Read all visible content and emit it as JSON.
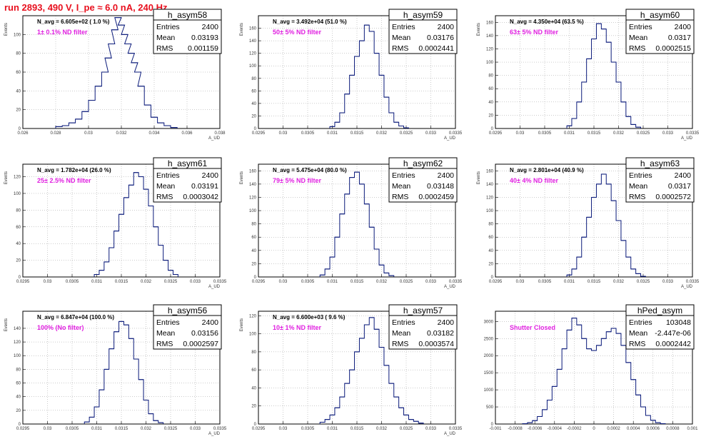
{
  "title": "run 2893,   490 V, I_pe ≈ 6.0 nA, 240 Hz",
  "stats_labels": {
    "entries": "Entries",
    "mean": "Mean",
    "rms": "RMS"
  },
  "colors": {
    "hist": "#0a1a7a",
    "title": "#e8101e",
    "filter": "#e020e0",
    "grid": "#9a9a9a"
  },
  "chart_data": [
    {
      "type": "bar",
      "name": "h_asym58",
      "navg": "N_avg = 6.605e+02 ( 1.0 %)",
      "filter": "1± 0.1% ND filter",
      "entries": "2400",
      "mean": "0.03193",
      "rms": "0.001159",
      "xlabel": "A_UD",
      "ylabel": "Events",
      "xlim": [
        0.026,
        0.038
      ],
      "ylim": [
        0,
        120
      ],
      "xticks": [
        "0.026",
        "0.028",
        "0.03",
        "0.032",
        "0.034",
        "0.036",
        "0.038"
      ],
      "xtick_values": [
        0.026,
        0.028,
        0.03,
        0.032,
        0.034,
        0.036,
        0.038
      ],
      "yticks": [
        "0",
        "20",
        "40",
        "60",
        "80",
        "100"
      ],
      "ytick_values": [
        0,
        20,
        40,
        60,
        80,
        100
      ],
      "x": [
        0.0282,
        0.0286,
        0.029,
        0.0294,
        0.0298,
        0.0302,
        0.0306,
        0.031,
        0.0312,
        0.0314,
        0.0316,
        0.0318,
        0.032,
        0.0322,
        0.0324,
        0.0326,
        0.0328,
        0.033,
        0.0332,
        0.0336,
        0.034,
        0.0344,
        0.0348,
        0.0352
      ],
      "y": [
        2,
        3,
        6,
        10,
        18,
        30,
        45,
        60,
        75,
        90,
        105,
        118,
        110,
        100,
        90,
        80,
        70,
        60,
        45,
        25,
        12,
        6,
        3,
        1
      ]
    },
    {
      "type": "bar",
      "name": "h_asym59",
      "navg": "N_avg = 3.492e+04 (51.0 %)",
      "filter": "50± 5% ND filter",
      "entries": "2400",
      "mean": "0.03176",
      "rms": "0.0002441",
      "xlabel": "A_UD",
      "ylabel": "Events",
      "xlim": [
        0.0295,
        0.0335
      ],
      "ylim": [
        0,
        180
      ],
      "xticks": [
        "0.0295",
        "0.03",
        "0.0305",
        "0.031",
        "0.0315",
        "0.032",
        "0.0325",
        "0.033",
        "0.0335"
      ],
      "xtick_values": [
        0.0295,
        0.03,
        0.0305,
        0.031,
        0.0315,
        0.032,
        0.0325,
        0.033,
        0.0335
      ],
      "yticks": [
        "0",
        "20",
        "40",
        "60",
        "80",
        "100",
        "120",
        "140",
        "160"
      ],
      "ytick_values": [
        0,
        20,
        40,
        60,
        80,
        100,
        120,
        140,
        160
      ],
      "x": [
        0.031,
        0.0311,
        0.0312,
        0.0313,
        0.0314,
        0.0315,
        0.0316,
        0.0317,
        0.0318,
        0.0319,
        0.032,
        0.0321,
        0.0322,
        0.0323,
        0.0324,
        0.0325
      ],
      "y": [
        3,
        10,
        25,
        55,
        85,
        115,
        140,
        165,
        155,
        120,
        85,
        50,
        25,
        10,
        4,
        1
      ]
    },
    {
      "type": "bar",
      "name": "h_asym60",
      "navg": "N_avg = 4.350e+04 (63.5 %)",
      "filter": "63± 5% ND filter",
      "entries": "2400",
      "mean": "0.0317",
      "rms": "0.0002515",
      "xlabel": "A_UD",
      "ylabel": "Events",
      "xlim": [
        0.0295,
        0.0335
      ],
      "ylim": [
        0,
        170
      ],
      "xticks": [
        "0.0295",
        "0.03",
        "0.0305",
        "0.031",
        "0.0315",
        "0.032",
        "0.0325",
        "0.033",
        "0.0335"
      ],
      "xtick_values": [
        0.0295,
        0.03,
        0.0305,
        0.031,
        0.0315,
        0.032,
        0.0325,
        0.033,
        0.0335
      ],
      "yticks": [
        "0",
        "20",
        "40",
        "60",
        "80",
        "100",
        "120",
        "140",
        "160"
      ],
      "ytick_values": [
        0,
        20,
        40,
        60,
        80,
        100,
        120,
        140,
        160
      ],
      "x": [
        0.031,
        0.0311,
        0.0312,
        0.0313,
        0.0314,
        0.0315,
        0.0316,
        0.0317,
        0.0318,
        0.0319,
        0.032,
        0.0321,
        0.0322,
        0.0323,
        0.0324
      ],
      "y": [
        4,
        15,
        40,
        70,
        105,
        135,
        158,
        150,
        130,
        100,
        70,
        40,
        18,
        6,
        2
      ]
    },
    {
      "type": "bar",
      "name": "h_asym61",
      "navg": "N_avg = 1.782e+04 (26.0 %)",
      "filter": "25± 2.5% ND filter",
      "entries": "2400",
      "mean": "0.03191",
      "rms": "0.0003042",
      "xlabel": "A_UD",
      "ylabel": "Events",
      "xlim": [
        0.0295,
        0.0335
      ],
      "ylim": [
        0,
        135
      ],
      "xticks": [
        "0.0295",
        "0.03",
        "0.0305",
        "0.031",
        "0.0315",
        "0.032",
        "0.0325",
        "0.033",
        "0.0335"
      ],
      "xtick_values": [
        0.0295,
        0.03,
        0.0305,
        0.031,
        0.0315,
        0.032,
        0.0325,
        0.033,
        0.0335
      ],
      "yticks": [
        "0",
        "20",
        "40",
        "60",
        "80",
        "100",
        "120"
      ],
      "ytick_values": [
        0,
        20,
        40,
        60,
        80,
        100,
        120
      ],
      "x": [
        0.031,
        0.0311,
        0.0312,
        0.0313,
        0.0314,
        0.0315,
        0.0316,
        0.0317,
        0.0318,
        0.0319,
        0.032,
        0.0321,
        0.0322,
        0.0323,
        0.0324,
        0.0325,
        0.0326
      ],
      "y": [
        3,
        8,
        18,
        35,
        55,
        75,
        95,
        110,
        125,
        120,
        105,
        85,
        60,
        38,
        20,
        8,
        3
      ]
    },
    {
      "type": "bar",
      "name": "h_asym62",
      "navg": "N_avg = 5.475e+04 (80.0 %)",
      "filter": "79± 5% ND filter",
      "entries": "2400",
      "mean": "0.03148",
      "rms": "0.0002459",
      "xlabel": "A_UD",
      "ylabel": "Events",
      "xlim": [
        0.0295,
        0.0335
      ],
      "ylim": [
        0,
        170
      ],
      "xticks": [
        "0.0295",
        "0.03",
        "0.0305",
        "0.031",
        "0.0315",
        "0.032",
        "0.0325",
        "0.033",
        "0.0335"
      ],
      "xtick_values": [
        0.0295,
        0.03,
        0.0305,
        0.031,
        0.0315,
        0.032,
        0.0325,
        0.033,
        0.0335
      ],
      "yticks": [
        "0",
        "20",
        "40",
        "60",
        "80",
        "100",
        "120",
        "140",
        "160"
      ],
      "ytick_values": [
        0,
        20,
        40,
        60,
        80,
        100,
        120,
        140,
        160
      ],
      "x": [
        0.0308,
        0.0309,
        0.031,
        0.0311,
        0.0312,
        0.0313,
        0.0314,
        0.0315,
        0.0316,
        0.0317,
        0.0318,
        0.0319,
        0.032,
        0.0321,
        0.0322
      ],
      "y": [
        3,
        12,
        30,
        60,
        95,
        125,
        150,
        158,
        140,
        110,
        75,
        42,
        18,
        6,
        2
      ]
    },
    {
      "type": "bar",
      "name": "h_asym63",
      "navg": "N_avg = 2.801e+04 (40.9 %)",
      "filter": "40± 4% ND filter",
      "entries": "2400",
      "mean": "0.0317",
      "rms": "0.0002572",
      "xlabel": "A_UD",
      "ylabel": "Events",
      "xlim": [
        0.0295,
        0.0335
      ],
      "ylim": [
        0,
        170
      ],
      "xticks": [
        "0.0295",
        "0.03",
        "0.0305",
        "0.031",
        "0.0315",
        "0.032",
        "0.0325",
        "0.033",
        "0.0335"
      ],
      "xtick_values": [
        0.0295,
        0.03,
        0.0305,
        0.031,
        0.0315,
        0.032,
        0.0325,
        0.033,
        0.0335
      ],
      "yticks": [
        "0",
        "20",
        "40",
        "60",
        "80",
        "100",
        "120",
        "140",
        "160"
      ],
      "ytick_values": [
        0,
        20,
        40,
        60,
        80,
        100,
        120,
        140,
        160
      ],
      "x": [
        0.031,
        0.0311,
        0.0312,
        0.0313,
        0.0314,
        0.0315,
        0.0316,
        0.0317,
        0.0318,
        0.0319,
        0.032,
        0.0321,
        0.0322,
        0.0323,
        0.0324,
        0.0325
      ],
      "y": [
        3,
        12,
        30,
        60,
        90,
        120,
        140,
        155,
        140,
        115,
        85,
        55,
        30,
        12,
        5,
        1
      ]
    },
    {
      "type": "bar",
      "name": "h_asym56",
      "navg": "N_avg = 6.847e+04 (100.0 %)",
      "filter": "100% (No filter)",
      "entries": "2400",
      "mean": "0.03156",
      "rms": "0.0002597",
      "xlabel": "A_UD",
      "ylabel": "Events",
      "xlim": [
        0.0295,
        0.0335
      ],
      "ylim": [
        0,
        165
      ],
      "xticks": [
        "0.0295",
        "0.03",
        "0.0305",
        "0.031",
        "0.0315",
        "0.032",
        "0.0325",
        "0.033",
        "0.0335"
      ],
      "xtick_values": [
        0.0295,
        0.03,
        0.0305,
        0.031,
        0.0315,
        0.032,
        0.0325,
        0.033,
        0.0335
      ],
      "yticks": [
        "0",
        "20",
        "40",
        "60",
        "80",
        "100",
        "120",
        "140"
      ],
      "ytick_values": [
        0,
        20,
        40,
        60,
        80,
        100,
        120,
        140
      ],
      "x": [
        0.0308,
        0.0309,
        0.031,
        0.0311,
        0.0312,
        0.0313,
        0.0314,
        0.0315,
        0.0316,
        0.0317,
        0.0318,
        0.0319,
        0.032,
        0.0321,
        0.0322,
        0.0323
      ],
      "y": [
        3,
        10,
        25,
        50,
        80,
        110,
        135,
        150,
        145,
        125,
        95,
        65,
        35,
        15,
        5,
        2
      ]
    },
    {
      "type": "bar",
      "name": "h_asym57",
      "navg": "N_avg = 6.600e+03 ( 9.6 %)",
      "filter": "10± 1% ND filter",
      "entries": "2400",
      "mean": "0.03182",
      "rms": "0.0003574",
      "xlabel": "A_UD",
      "ylabel": "Events",
      "xlim": [
        0.0295,
        0.0335
      ],
      "ylim": [
        0,
        125
      ],
      "xticks": [
        "0.0295",
        "0.03",
        "0.0305",
        "0.031",
        "0.0315",
        "0.032",
        "0.0325",
        "0.033",
        "0.0335"
      ],
      "xtick_values": [
        0.0295,
        0.03,
        0.0305,
        0.031,
        0.0315,
        0.032,
        0.0325,
        0.033,
        0.0335
      ],
      "yticks": [
        "0",
        "20",
        "40",
        "60",
        "80",
        "100",
        "120"
      ],
      "ytick_values": [
        0,
        20,
        40,
        60,
        80,
        100,
        120
      ],
      "x": [
        0.0308,
        0.0309,
        0.031,
        0.0311,
        0.0312,
        0.0313,
        0.0314,
        0.0315,
        0.0316,
        0.0317,
        0.0318,
        0.0319,
        0.032,
        0.0321,
        0.0322,
        0.0323,
        0.0324,
        0.0325,
        0.0326,
        0.0327,
        0.0328
      ],
      "y": [
        2,
        5,
        10,
        18,
        30,
        45,
        60,
        80,
        95,
        110,
        118,
        105,
        85,
        65,
        45,
        30,
        18,
        10,
        5,
        3,
        1
      ]
    },
    {
      "type": "bar",
      "name": "hPed_asym",
      "navg": "",
      "filter": "Shutter Closed",
      "entries": "103048",
      "mean": "-2.447e-06",
      "rms": "0.0002442",
      "xlabel": "",
      "ylabel": "",
      "xlim": [
        -0.001,
        0.001
      ],
      "ylim": [
        0,
        3300
      ],
      "xticks": [
        "-0.001",
        "-0.0008",
        "-0.0006",
        "-0.0004",
        "-0.0002",
        "0",
        "0.0002",
        "0.0004",
        "0.0006",
        "0.0008",
        "0.001"
      ],
      "xtick_values": [
        -0.001,
        -0.0008,
        -0.0006,
        -0.0004,
        -0.0002,
        0,
        0.0002,
        0.0004,
        0.0006,
        0.0008,
        0.001
      ],
      "yticks": [
        "0",
        "500",
        "1000",
        "1500",
        "2000",
        "2500",
        "3000"
      ],
      "ytick_values": [
        0,
        500,
        1000,
        1500,
        2000,
        2500,
        3000
      ],
      "x": [
        -0.0007,
        -0.00065,
        -0.0006,
        -0.00055,
        -0.0005,
        -0.00045,
        -0.0004,
        -0.00035,
        -0.0003,
        -0.00025,
        -0.0002,
        -0.00015,
        -0.0001,
        -5e-05,
        0,
        5e-05,
        0.0001,
        0.00015,
        0.0002,
        0.00025,
        0.0003,
        0.00035,
        0.0004,
        0.00045,
        0.0005,
        0.00055,
        0.0006,
        0.00065,
        0.0007
      ],
      "y": [
        10,
        40,
        100,
        220,
        420,
        700,
        1100,
        1600,
        2200,
        2750,
        3100,
        2900,
        2500,
        2200,
        2150,
        2300,
        2500,
        2700,
        2800,
        2650,
        2300,
        1800,
        1300,
        850,
        500,
        250,
        110,
        40,
        10
      ]
    }
  ]
}
